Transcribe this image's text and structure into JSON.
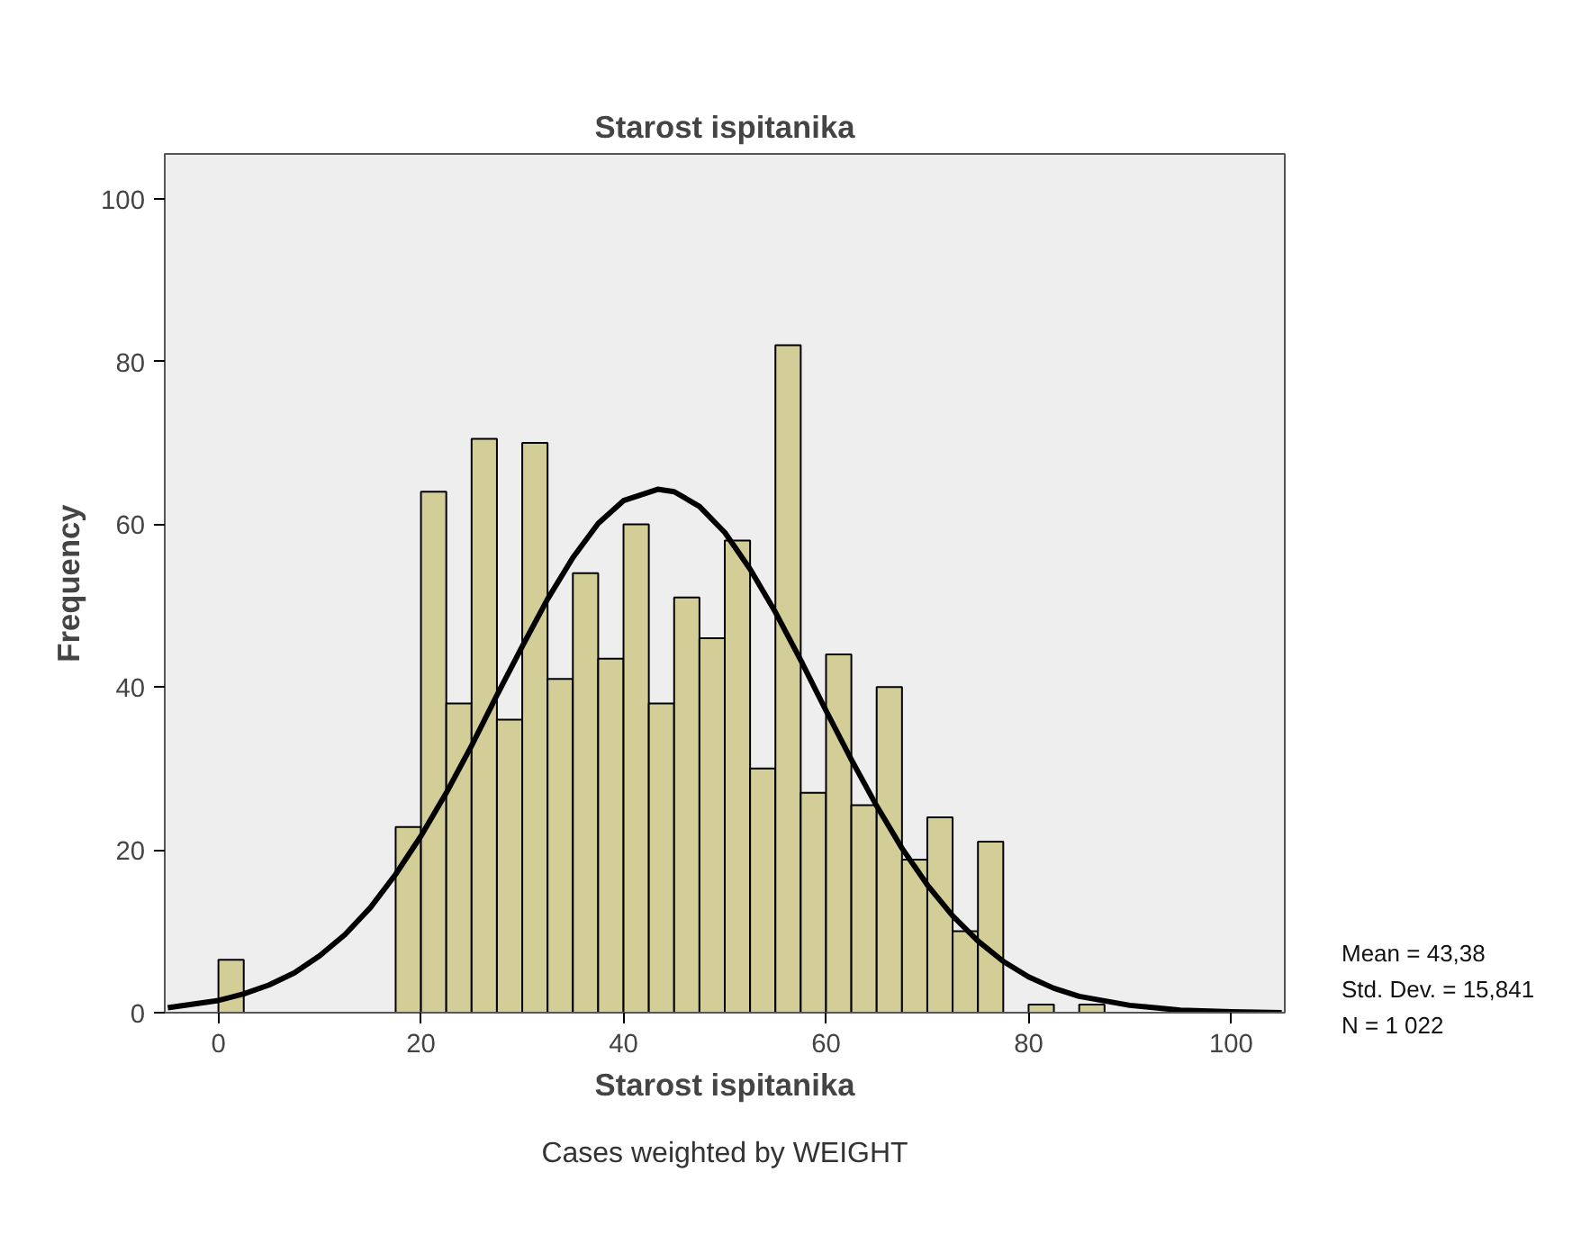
{
  "chart_data": {
    "type": "histogram",
    "title": "Starost ispitanika",
    "xlabel": "Starost ispitanika",
    "ylabel": "Frequency",
    "bins": [
      0,
      2.5,
      5,
      7.5,
      10,
      12.5,
      15,
      17.5,
      20,
      22.5,
      25,
      27.5,
      30,
      32.5,
      35,
      37.5,
      40,
      42.5,
      45,
      47.5,
      50,
      52.5,
      55,
      57.5,
      60,
      62.5,
      65,
      67.5,
      70,
      72.5,
      75,
      77.5,
      80,
      82.5,
      85,
      87.5
    ],
    "values": [
      6.5,
      0,
      0,
      0,
      0,
      0,
      0,
      22.8,
      64,
      38,
      70.5,
      36,
      70,
      41,
      54,
      43.5,
      60,
      38,
      51,
      46,
      58,
      30,
      82,
      27,
      44,
      25.5,
      40,
      18.8,
      24,
      10,
      21,
      0,
      1,
      0,
      1
    ],
    "color": "#d3ce97",
    "series": [
      {
        "type": "line",
        "color": "#000000",
        "x": [
          -5,
          0,
          2.5,
          5,
          7.5,
          10,
          12.5,
          15,
          17.5,
          20,
          22.5,
          25,
          27.5,
          30,
          32.5,
          35,
          37.5,
          40,
          43.38,
          45,
          47.5,
          50,
          52.5,
          55,
          57.5,
          60,
          62.5,
          65,
          67.5,
          70,
          72.5,
          75,
          77.5,
          80,
          82.5,
          85,
          90,
          95,
          100,
          105
        ],
        "values": [
          0.6,
          1.5,
          2.3,
          3.4,
          4.9,
          7.0,
          9.6,
          12.9,
          17.0,
          21.7,
          27.0,
          32.8,
          39.0,
          45.0,
          50.8,
          55.9,
          60.1,
          62.9,
          64.3,
          64.0,
          62.2,
          59.0,
          54.5,
          49.2,
          43.3,
          37.1,
          31.1,
          25.4,
          20.2,
          15.7,
          11.9,
          8.8,
          6.3,
          4.4,
          3.0,
          2.0,
          0.9,
          0.3,
          0.1,
          0.0
        ]
      }
    ],
    "xlim": [
      -5.3,
      105.3
    ],
    "ylim": [
      0,
      105.5
    ],
    "xticks": [
      0,
      20,
      40,
      60,
      80,
      100
    ],
    "yticks": [
      0,
      20,
      40,
      60,
      80,
      100
    ],
    "grid": false,
    "annotations": [
      "Mean = 43,38",
      "Std. Dev. = 15,841",
      "N = 1 022",
      "Cases weighted by WEIGHT"
    ]
  }
}
